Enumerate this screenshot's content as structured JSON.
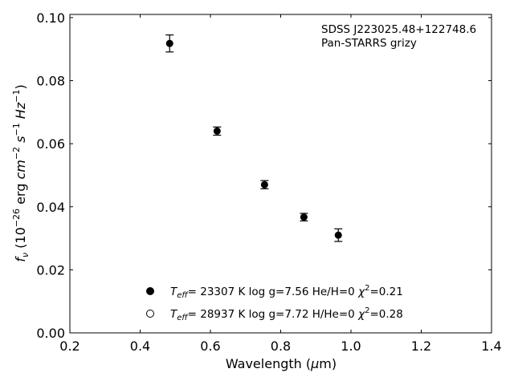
{
  "chart_data": {
    "type": "scatter",
    "title": "",
    "xlabel": "Wavelength (µm)",
    "ylabel": "f_ν (10⁻²⁶ erg cm⁻² s⁻¹ Hz⁻¹)",
    "xlim": [
      0.2,
      1.4
    ],
    "ylim": [
      0.0,
      0.101
    ],
    "xticks": [
      0.2,
      0.4,
      0.6,
      0.8,
      1.0,
      1.2,
      1.4
    ],
    "xtick_labels": [
      "0.2",
      "0.4",
      "0.6",
      "0.8",
      "1.0",
      "1.2",
      "1.4"
    ],
    "yticks": [
      0.0,
      0.02,
      0.04,
      0.06,
      0.08,
      0.1
    ],
    "ytick_labels": [
      "0.00",
      "0.02",
      "0.04",
      "0.06",
      "0.08",
      "0.10"
    ],
    "grid": false,
    "ticks_direction": "in",
    "annotations": [
      "SDSS J223025.48+122748.6",
      "Pan-STARRS grizy"
    ],
    "series": [
      {
        "style": "filled-circle-errorbar",
        "x": [
          0.484,
          0.619,
          0.754,
          0.866,
          0.964
        ],
        "y": [
          0.0918,
          0.064,
          0.047,
          0.0367,
          0.031
        ],
        "yerr": [
          0.0027,
          0.0013,
          0.0013,
          0.0012,
          0.002
        ]
      }
    ],
    "legend": {
      "placement": "lower-center",
      "entries": [
        {
          "marker": "filled-circle",
          "label": "T_eff= 23307 K  log g=7.56  He/H=0  χ²=0.21"
        },
        {
          "marker": "open-circle",
          "label": "T_eff= 28937 K  log g=7.72  H/He=0  χ²=0.28"
        }
      ]
    },
    "colors": {
      "marker": "#000000",
      "axes": "#000000",
      "background": "#ffffff"
    }
  }
}
